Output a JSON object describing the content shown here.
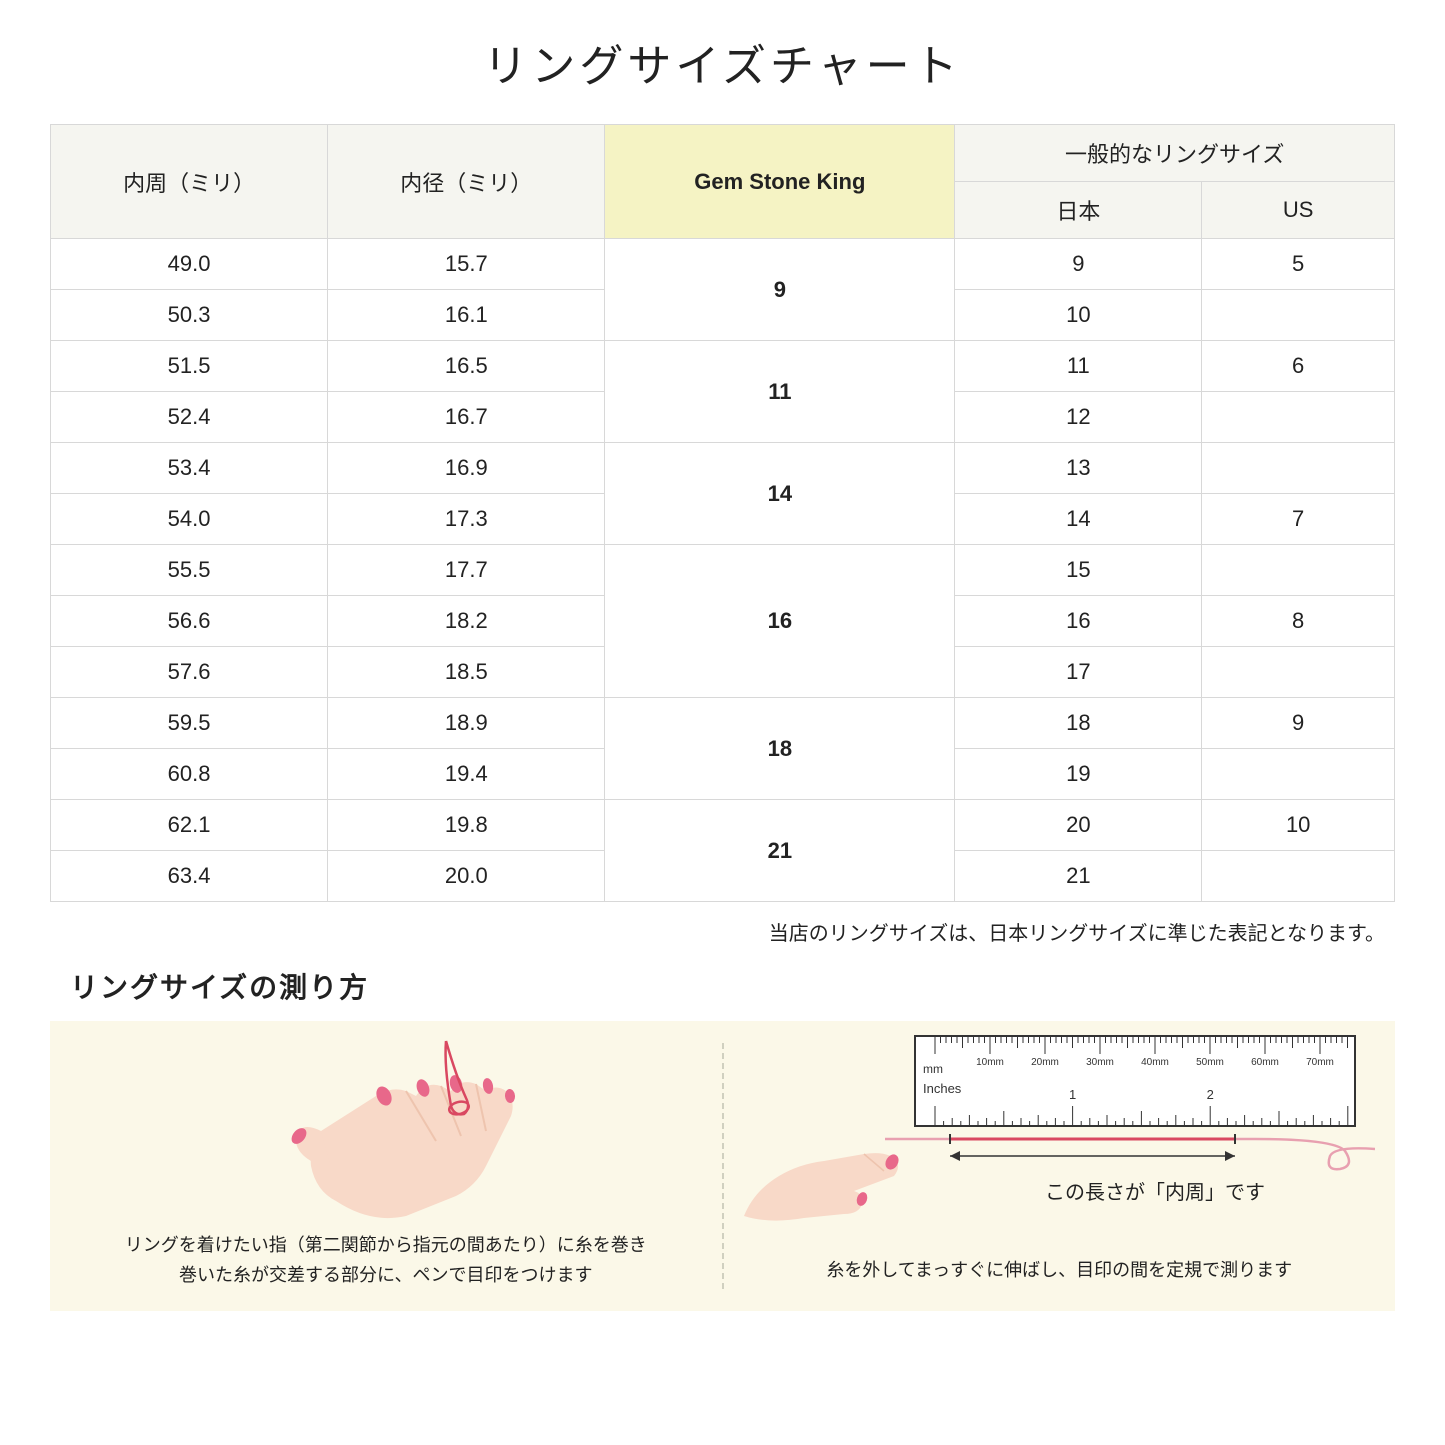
{
  "title": "リングサイズチャート",
  "headers": {
    "circumference": "内周（ミリ）",
    "diameter": "内径（ミリ）",
    "gsk": "Gem Stone King",
    "general": "一般的なリングサイズ",
    "japan": "日本",
    "us": "US"
  },
  "rows": [
    {
      "circ": "49.0",
      "diam": "15.7",
      "gsk": "9",
      "gsk_span": 2,
      "jp": "9",
      "us": "5"
    },
    {
      "circ": "50.3",
      "diam": "16.1",
      "jp": "10",
      "us": ""
    },
    {
      "circ": "51.5",
      "diam": "16.5",
      "gsk": "11",
      "gsk_span": 2,
      "jp": "11",
      "us": "6"
    },
    {
      "circ": "52.4",
      "diam": "16.7",
      "jp": "12",
      "us": ""
    },
    {
      "circ": "53.4",
      "diam": "16.9",
      "gsk": "14",
      "gsk_span": 2,
      "jp": "13",
      "us": ""
    },
    {
      "circ": "54.0",
      "diam": "17.3",
      "jp": "14",
      "us": "7"
    },
    {
      "circ": "55.5",
      "diam": "17.7",
      "gsk": "16",
      "gsk_span": 3,
      "jp": "15",
      "us": ""
    },
    {
      "circ": "56.6",
      "diam": "18.2",
      "jp": "16",
      "us": "8"
    },
    {
      "circ": "57.6",
      "diam": "18.5",
      "jp": "17",
      "us": ""
    },
    {
      "circ": "59.5",
      "diam": "18.9",
      "gsk": "18",
      "gsk_span": 2,
      "jp": "18",
      "us": "9"
    },
    {
      "circ": "60.8",
      "diam": "19.4",
      "jp": "19",
      "us": ""
    },
    {
      "circ": "62.1",
      "diam": "19.8",
      "gsk": "21",
      "gsk_span": 2,
      "jp": "20",
      "us": "10"
    },
    {
      "circ": "63.4",
      "diam": "20.0",
      "jp": "21",
      "us": ""
    }
  ],
  "note": "当店のリングサイズは、日本リングサイズに準じた表記となります。",
  "howto": {
    "title": "リングサイズの測り方",
    "left_caption": "リングを着けたい指（第二関節から指元の間あたり）に糸を巻き\n巻いた糸が交差する部分に、ペンで目印をつけます",
    "right_caption": "糸を外してまっすぐに伸ばし、目印の間を定規で測ります",
    "measure_label": "この長さが「内周」です",
    "ruler_mm": "mm",
    "ruler_inches": "Inches",
    "ruler_marks": [
      "10mm",
      "20mm",
      "30mm",
      "40mm",
      "50mm",
      "60mm",
      "70mm"
    ],
    "ruler_inch_marks": [
      "1",
      "2"
    ]
  },
  "colors": {
    "header_bg": "#f5f5f0",
    "gsk_bg": "#f5f3c4",
    "border": "#d8d8d8",
    "howto_bg": "#fbf8e8",
    "skin": "#f8d9c8",
    "skin_dark": "#eec4ae",
    "nail": "#e8688a",
    "thread": "#d94861",
    "ruler_bg": "#ffffff",
    "ruler_border": "#333333",
    "arrow": "#333333"
  }
}
